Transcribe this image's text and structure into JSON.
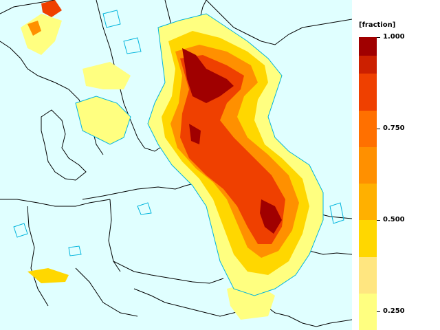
{
  "legend": {
    "unit_label": "[fraction]",
    "ticks": [
      {
        "label": "1.000",
        "value": 1.0
      },
      {
        "label": "0.750",
        "value": 0.75
      },
      {
        "label": "0.500",
        "value": 0.5
      },
      {
        "label": "0.250",
        "value": 0.25
      }
    ],
    "bands": [
      {
        "from": 0.2,
        "to": 0.3,
        "color": "#ffff80"
      },
      {
        "from": 0.3,
        "to": 0.4,
        "color": "#ffe680"
      },
      {
        "from": 0.4,
        "to": 0.5,
        "color": "#ffd700"
      },
      {
        "from": 0.5,
        "to": 0.6,
        "color": "#ffb000"
      },
      {
        "from": 0.6,
        "to": 0.7,
        "color": "#ff9000"
      },
      {
        "from": 0.7,
        "to": 0.8,
        "color": "#ff7000"
      },
      {
        "from": 0.8,
        "to": 0.9,
        "color": "#ef4000"
      },
      {
        "from": 0.9,
        "to": 0.95,
        "color": "#cc2000"
      },
      {
        "from": 0.95,
        "to": 1.0,
        "color": "#a00000"
      }
    ]
  },
  "map": {
    "ocean_color": "#e0ffff",
    "border_color": "#000000",
    "contour_color": "#00b4dc",
    "field_colors": [
      "#ffff80",
      "#ffd700",
      "#ff9000",
      "#ef4000",
      "#a00000"
    ]
  }
}
